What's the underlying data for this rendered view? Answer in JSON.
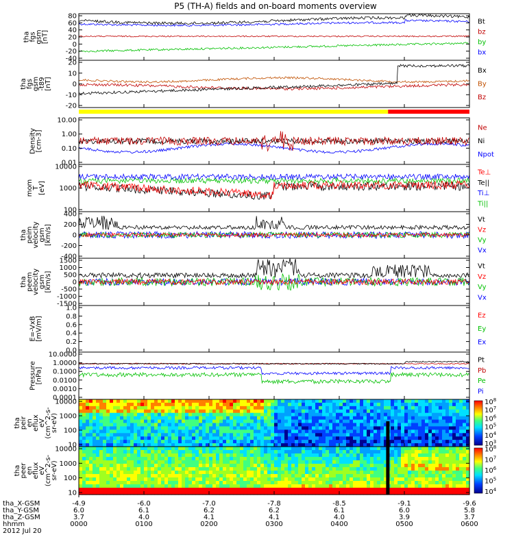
{
  "chart_data": {
    "type": "line",
    "title": "P5 (TH-A) fields and on-board moments overview",
    "date": "2012 Jul 20",
    "x_ticks": [
      "0000",
      "0100",
      "0200",
      "0300",
      "0400",
      "0500",
      "0600"
    ],
    "orbit": [
      {
        "label": "tha_X-GSM",
        "values": [
          "-4.9",
          "-6.0",
          "-7.0",
          "-7.8",
          "-8.5",
          "-9.1",
          "-9.6"
        ]
      },
      {
        "label": "tha_Y-GSM",
        "values": [
          "6.0",
          "6.1",
          "6.2",
          "6.2",
          "6.1",
          "6.0",
          "5.8"
        ]
      },
      {
        "label": "tha_Z-GSM",
        "values": [
          "3.7",
          "4.0",
          "4.1",
          "4.1",
          "4.0",
          "3.9",
          "3.7"
        ]
      },
      {
        "label": "hhmm",
        "values": []
      }
    ],
    "status_bar": {
      "colors": [
        "#ffff00",
        "#ff0000"
      ],
      "switch_hour": 4.75
    },
    "panels": [
      {
        "id": "fgs1",
        "ylabel": [
          "tha",
          "fgs",
          "gsm",
          "[nT]"
        ],
        "yticks": [
          "80",
          "60",
          "40",
          "20",
          "0",
          "-20",
          "-40"
        ],
        "legend": [
          "Bt",
          "bz",
          "by",
          "bx"
        ],
        "colors": [
          "#000000",
          "#c00000",
          "#00c000",
          "#0000ff"
        ]
      },
      {
        "id": "fgs2",
        "ylabel": [
          "tha",
          "fgs",
          "gsm",
          "-t89",
          "[nT]"
        ],
        "yticks": [
          "20",
          "10",
          "0",
          "-10",
          "-20"
        ],
        "legend": [
          "Bx",
          "By",
          "Bz"
        ],
        "colors": [
          "#000000",
          "#c05000",
          "#c00000"
        ]
      },
      {
        "id": "dens",
        "ylabel": [
          "Density",
          "[cm-3]"
        ],
        "yticks": [
          "10.00",
          "1.00",
          "0.10",
          "0.01"
        ],
        "legend": [
          "Ne",
          "Ni",
          "Npot"
        ],
        "colors": [
          "#c00000",
          "#000000",
          "#0000ff"
        ]
      },
      {
        "id": "temp",
        "ylabel": [
          "mom",
          "T",
          "[eV]"
        ],
        "yticks": [
          "10000",
          "1000",
          "100"
        ],
        "legend": [
          "Te⊥",
          "Te||",
          "Ti⊥",
          "Ti||"
        ],
        "colors": [
          "#ff0000",
          "#000000",
          "#0000ff",
          "#00c000"
        ]
      },
      {
        "id": "peim",
        "ylabel": [
          "tha",
          "peim",
          "velocity",
          "gsm",
          "[km/s]"
        ],
        "yticks": [
          "400",
          "200",
          "0",
          "-200",
          "-400"
        ],
        "legend": [
          "Vt",
          "Vz",
          "Vy",
          "Vx"
        ],
        "colors": [
          "#000000",
          "#ff0000",
          "#00c000",
          "#0000ff"
        ]
      },
      {
        "id": "peem",
        "ylabel": [
          "tha",
          "peem",
          "velocity",
          "gsm",
          "[km/s]"
        ],
        "yticks": [
          "1500",
          "1000",
          "500",
          "0",
          "-500",
          "-1000",
          "-1500"
        ],
        "legend": [
          "Vt",
          "Vz",
          "Vy",
          "Vx"
        ],
        "colors": [
          "#000000",
          "#ff0000",
          "#00c000",
          "#0000ff"
        ]
      },
      {
        "id": "efld",
        "ylabel": [
          "E=-VxB",
          "[mV/m]"
        ],
        "yticks": [
          "1.0",
          "0.8",
          "0.6",
          "0.4",
          "0.2",
          "0.0"
        ],
        "legend": [
          "Ez",
          "Ey",
          "Ex"
        ],
        "colors": [
          "#ff0000",
          "#00c000",
          "#0000ff"
        ]
      },
      {
        "id": "pres",
        "ylabel": [
          "Pressure",
          "[nPa]"
        ],
        "yticks": [
          "10.0000",
          "1.0000",
          "0.1000",
          "0.0100",
          "0.0010",
          "0.0001"
        ],
        "legend": [
          "Pt",
          "Pb",
          "Pe",
          "Pi"
        ],
        "colors": [
          "#000000",
          "#c00000",
          "#00c000",
          "#0000ff"
        ]
      },
      {
        "id": "peir",
        "ylabel": [
          "tha",
          "peir",
          "en",
          "eflux",
          "eV",
          "(cm^2-s-",
          "sr-eV)"
        ],
        "yticks": [
          "10000",
          "1000",
          "100",
          "10"
        ],
        "cbar": [
          "10^8",
          "10^7",
          "10^6",
          "10^5",
          "10^4",
          "10^3"
        ]
      },
      {
        "id": "peer",
        "ylabel": [
          "tha",
          "peer",
          "en",
          "eflux",
          "eV",
          "(cm^2-s-",
          "sr-eV)"
        ],
        "yticks": [
          "10000",
          "1000",
          "100",
          "10"
        ],
        "cbar": [
          "10^8",
          "10^7",
          "10^6",
          "10^5",
          "10^4"
        ]
      }
    ]
  }
}
